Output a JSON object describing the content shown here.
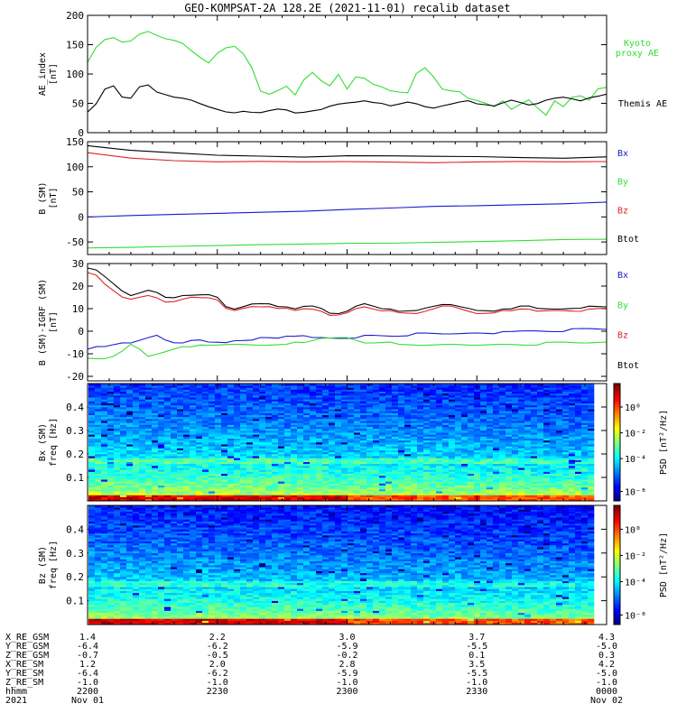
{
  "title": "GEO-KOMPSAT-2A 128.2E (2021-11-01) recalib dataset",
  "colors": {
    "black": "#000000",
    "green": "#33dd33",
    "red": "#dd2222",
    "blue": "#1a1acc",
    "kyoto": "#33dd33"
  },
  "chart_data": [
    {
      "type": "line",
      "ylabel": "AE_index [nT]",
      "ylabel_lines": [
        "AE_index",
        "[nT]"
      ],
      "ylim": [
        0,
        200
      ],
      "yticks": [
        0,
        50,
        100,
        150,
        200
      ],
      "legend": [
        {
          "label": "Kyoto",
          "color": "#33dd33"
        },
        {
          "label": "proxy AE",
          "color": "#33dd33"
        },
        {
          "label": "Themis AE",
          "color": "#000000"
        }
      ],
      "series": [
        {
          "name": "Kyoto proxy AE",
          "color": "#33dd33",
          "x": [
            0,
            2,
            4,
            6,
            8,
            10,
            12,
            14,
            16,
            18,
            20,
            22,
            24,
            26,
            28,
            30,
            32,
            34,
            36,
            38,
            40,
            42,
            44,
            46,
            48,
            50,
            52,
            54,
            56,
            58,
            60,
            62,
            64,
            66,
            68,
            70,
            72,
            74,
            76,
            78,
            80,
            82,
            84,
            86,
            88,
            90,
            92,
            94,
            96,
            98,
            100,
            102,
            104,
            106,
            108,
            110,
            112,
            114,
            116,
            118,
            120
          ],
          "y": [
            120,
            145,
            158,
            162,
            155,
            157,
            168,
            172,
            165,
            160,
            158,
            153,
            140,
            128,
            118,
            135,
            145,
            148,
            135,
            110,
            70,
            65,
            72,
            80,
            65,
            90,
            102,
            88,
            80,
            100,
            75,
            95,
            92,
            82,
            78,
            72,
            70,
            68,
            100,
            110,
            95,
            75,
            72,
            70,
            58,
            54,
            50,
            45,
            55,
            40,
            48,
            55,
            42,
            30,
            55,
            45,
            60,
            62,
            55,
            75,
            78
          ]
        },
        {
          "name": "Themis AE",
          "color": "#000000",
          "x": [
            0,
            2,
            4,
            6,
            8,
            10,
            12,
            14,
            16,
            18,
            20,
            22,
            24,
            26,
            28,
            30,
            32,
            34,
            36,
            38,
            40,
            42,
            44,
            46,
            48,
            50,
            52,
            54,
            56,
            58,
            60,
            62,
            64,
            66,
            68,
            70,
            72,
            74,
            76,
            78,
            80,
            82,
            84,
            86,
            88,
            90,
            92,
            94,
            96,
            98,
            100,
            102,
            104,
            106,
            108,
            110,
            112,
            114,
            116,
            118,
            120
          ],
          "y": [
            35,
            50,
            75,
            80,
            60,
            58,
            78,
            82,
            70,
            65,
            60,
            58,
            55,
            50,
            45,
            40,
            35,
            33,
            36,
            35,
            35,
            38,
            40,
            38,
            33,
            35,
            38,
            40,
            45,
            48,
            50,
            52,
            55,
            52,
            50,
            45,
            48,
            52,
            50,
            45,
            42,
            45,
            48,
            52,
            55,
            50,
            48,
            45,
            50,
            55,
            52,
            48,
            50,
            55,
            58,
            60,
            58,
            55,
            60,
            62,
            65
          ]
        }
      ]
    },
    {
      "type": "line",
      "ylabel": "B (SM) [nT]",
      "ylabel_lines": [
        "B (SM)",
        "[nT]"
      ],
      "ylim": [
        -75,
        150
      ],
      "yticks": [
        -50,
        0,
        50,
        100,
        150
      ],
      "legend": [
        {
          "label": "Bx",
          "color": "#1a1acc"
        },
        {
          "label": "By",
          "color": "#33dd33"
        },
        {
          "label": "Bz",
          "color": "#dd2222"
        },
        {
          "label": "Btot",
          "color": "#000000"
        }
      ],
      "series": [
        {
          "name": "Btot",
          "color": "#000000",
          "x": [
            0,
            10,
            20,
            30,
            40,
            50,
            60,
            70,
            80,
            90,
            100,
            110,
            120
          ],
          "y": [
            142,
            132,
            127,
            123,
            122,
            120,
            122,
            121,
            120,
            120,
            119,
            118,
            120
          ]
        },
        {
          "name": "Bz",
          "color": "#dd2222",
          "x": [
            0,
            10,
            20,
            30,
            40,
            50,
            60,
            70,
            80,
            90,
            100,
            110,
            120
          ],
          "y": [
            128,
            118,
            113,
            110,
            110,
            109,
            110,
            110,
            109,
            110,
            110,
            109,
            110
          ]
        },
        {
          "name": "Bx",
          "color": "#1a1acc",
          "x": [
            0,
            10,
            20,
            30,
            40,
            50,
            60,
            70,
            80,
            90,
            100,
            110,
            120
          ],
          "y": [
            0,
            2,
            4,
            7,
            10,
            12,
            15,
            17,
            20,
            22,
            25,
            27,
            30
          ]
        },
        {
          "name": "By",
          "color": "#33dd33",
          "x": [
            0,
            10,
            20,
            30,
            40,
            50,
            60,
            70,
            80,
            90,
            100,
            110,
            120
          ],
          "y": [
            -62,
            -60,
            -58,
            -57,
            -56,
            -55,
            -53,
            -52,
            -50,
            -49,
            -48,
            -46,
            -45
          ]
        }
      ]
    },
    {
      "type": "line",
      "ylabel": "B (SM)-IGRF (SM) [nT]",
      "ylabel_lines": [
        "B (SM)-IGRF (SM)",
        "[nT]"
      ],
      "ylim": [
        -22,
        30
      ],
      "yticks": [
        -20,
        -10,
        0,
        10,
        20,
        30
      ],
      "legend": [
        {
          "label": "Bx",
          "color": "#1a1acc"
        },
        {
          "label": "By",
          "color": "#33dd33"
        },
        {
          "label": "Bz",
          "color": "#dd2222"
        },
        {
          "label": "Btot",
          "color": "#000000"
        }
      ],
      "series": [
        {
          "name": "Btot",
          "color": "#000000",
          "x": [
            0,
            2,
            4,
            6,
            8,
            10,
            12,
            14,
            16,
            18,
            20,
            22,
            24,
            26,
            28,
            30,
            32,
            34,
            36,
            38,
            40,
            42,
            44,
            46,
            48,
            50,
            52,
            54,
            56,
            58,
            60,
            62,
            64,
            66,
            68,
            70,
            72,
            74,
            76,
            78,
            80,
            82,
            84,
            86,
            88,
            90,
            92,
            94,
            96,
            98,
            100,
            102,
            104,
            106,
            108,
            110,
            112,
            114,
            116,
            118,
            120
          ],
          "y": [
            28,
            27,
            24,
            21,
            18,
            16,
            17,
            18,
            17,
            15,
            15,
            16,
            16,
            16,
            16,
            15,
            11,
            10,
            11,
            12,
            12,
            12,
            11,
            11,
            10,
            11,
            11,
            10,
            8,
            8,
            9,
            11,
            12,
            11,
            10,
            10,
            9,
            9,
            9,
            10,
            11,
            12,
            12,
            11,
            10,
            9,
            9,
            9,
            10,
            10,
            11,
            11,
            10,
            10,
            10,
            10,
            10,
            10,
            11,
            11,
            11
          ]
        },
        {
          "name": "Bz",
          "color": "#dd2222",
          "x": [
            0,
            2,
            4,
            6,
            8,
            10,
            12,
            14,
            16,
            18,
            20,
            22,
            24,
            26,
            28,
            30,
            32,
            34,
            36,
            38,
            40,
            42,
            44,
            46,
            48,
            50,
            52,
            54,
            56,
            58,
            60,
            62,
            64,
            66,
            68,
            70,
            72,
            74,
            76,
            78,
            80,
            82,
            84,
            86,
            88,
            90,
            92,
            94,
            96,
            98,
            100,
            102,
            104,
            106,
            108,
            110,
            112,
            114,
            116,
            118,
            120
          ],
          "y": [
            26,
            25,
            21,
            18,
            15,
            14,
            15,
            16,
            15,
            13,
            13,
            14,
            15,
            15,
            15,
            14,
            10,
            9,
            10,
            11,
            11,
            11,
            10,
            10,
            9,
            10,
            10,
            9,
            7,
            7,
            8,
            10,
            11,
            10,
            9,
            9,
            8,
            8,
            8,
            9,
            10,
            11,
            11,
            10,
            9,
            8,
            8,
            8,
            9,
            9,
            10,
            10,
            9,
            9,
            9,
            9,
            9,
            9,
            10,
            10,
            10
          ]
        },
        {
          "name": "Bx",
          "color": "#1a1acc",
          "x": [
            0,
            2,
            4,
            6,
            8,
            10,
            12,
            14,
            16,
            18,
            20,
            22,
            24,
            26,
            28,
            30,
            32,
            34,
            36,
            38,
            40,
            42,
            44,
            46,
            48,
            50,
            52,
            54,
            56,
            58,
            60,
            62,
            64,
            66,
            68,
            70,
            72,
            74,
            76,
            78,
            80,
            82,
            84,
            86,
            88,
            90,
            92,
            94,
            96,
            98,
            100,
            102,
            104,
            106,
            108,
            110,
            112,
            114,
            116,
            118,
            120
          ],
          "y": [
            -8,
            -7,
            -7,
            -6,
            -5,
            -5,
            -4,
            -3,
            -2,
            -4,
            -5,
            -5,
            -4,
            -4,
            -5,
            -5,
            -5,
            -4,
            -4,
            -4,
            -3,
            -3,
            -3,
            -2,
            -2,
            -2,
            -3,
            -3,
            -3,
            -3,
            -3,
            -3,
            -2,
            -2,
            -2,
            -2,
            -2,
            -2,
            -1,
            -1,
            -1,
            -1,
            -1,
            -1,
            -1,
            -1,
            -1,
            -1,
            0,
            0,
            0,
            0,
            0,
            0,
            0,
            0,
            1,
            1,
            1,
            1,
            1
          ]
        },
        {
          "name": "By",
          "color": "#33dd33",
          "x": [
            0,
            2,
            4,
            6,
            8,
            10,
            12,
            14,
            16,
            18,
            20,
            22,
            24,
            26,
            28,
            30,
            32,
            34,
            36,
            38,
            40,
            42,
            44,
            46,
            48,
            50,
            52,
            54,
            56,
            58,
            60,
            62,
            64,
            66,
            68,
            70,
            72,
            74,
            76,
            78,
            80,
            82,
            84,
            86,
            88,
            90,
            92,
            94,
            96,
            98,
            100,
            102,
            104,
            106,
            108,
            110,
            112,
            114,
            116,
            118,
            120
          ],
          "y": [
            -12,
            -12,
            -12,
            -11,
            -9,
            -6,
            -8,
            -11,
            -10,
            -9,
            -8,
            -7,
            -7,
            -6,
            -6,
            -6,
            -6,
            -6,
            -6,
            -6,
            -6,
            -6,
            -6,
            -6,
            -5,
            -5,
            -4,
            -3,
            -3,
            -3,
            -3,
            -4,
            -5,
            -5,
            -5,
            -5,
            -6,
            -6,
            -6,
            -6,
            -6,
            -6,
            -6,
            -6,
            -6,
            -6,
            -6,
            -6,
            -6,
            -6,
            -6,
            -6,
            -6,
            -5,
            -5,
            -5,
            -5,
            -5,
            -5,
            -5,
            -5
          ]
        }
      ]
    },
    {
      "type": "heatmap",
      "ylabel": "Bx (SM) freq [Hz]",
      "ylabel_lines": [
        "Bx (SM)",
        "freq [Hz]"
      ],
      "ylim": [
        0,
        0.5
      ],
      "yticks": [
        0.1,
        0.2,
        0.3,
        0.4
      ],
      "colorbar": {
        "label": "PSD [nT²/Hz]",
        "ticks": [
          "10⁰",
          "10⁻²",
          "10⁻⁴",
          "10⁻⁶"
        ]
      }
    },
    {
      "type": "heatmap",
      "ylabel": "Bz (SM) freq [Hz]",
      "ylabel_lines": [
        "Bz (SM)",
        "freq [Hz]"
      ],
      "ylim": [
        0,
        0.5
      ],
      "yticks": [
        0.1,
        0.2,
        0.3,
        0.4
      ],
      "colorbar": {
        "label": "PSD [nT²/Hz]",
        "ticks": [
          "10⁰",
          "10⁻²",
          "10⁻⁴",
          "10⁻⁶"
        ]
      }
    }
  ],
  "ephemeris": {
    "rows": [
      {
        "label": "X_RE_GSM",
        "values": [
          "1.4",
          "2.2",
          "3.0",
          "3.7",
          "4.3"
        ]
      },
      {
        "label": "Y_RE_GSM",
        "values": [
          "-6.4",
          "-6.2",
          "-5.9",
          "-5.5",
          "-5.0"
        ]
      },
      {
        "label": "Z_RE_GSM",
        "values": [
          "-0.7",
          "-0.5",
          "-0.2",
          "0.1",
          "0.3"
        ]
      },
      {
        "label": "X_RE_SM",
        "values": [
          "1.2",
          "2.0",
          "2.8",
          "3.5",
          "4.2"
        ]
      },
      {
        "label": "Y_RE_SM",
        "values": [
          "-6.4",
          "-6.2",
          "-5.9",
          "-5.5",
          "-5.0"
        ]
      },
      {
        "label": "Z_RE_SM",
        "values": [
          "-1.0",
          "-1.0",
          "-1.0",
          "-1.0",
          "-1.0"
        ]
      },
      {
        "label": "hhmm",
        "values": [
          "2200",
          "2230",
          "2300",
          "2330",
          "0000"
        ]
      },
      {
        "label": "2021",
        "values": [
          "Nov 01",
          "",
          "",
          "",
          "Nov 02"
        ]
      }
    ]
  }
}
